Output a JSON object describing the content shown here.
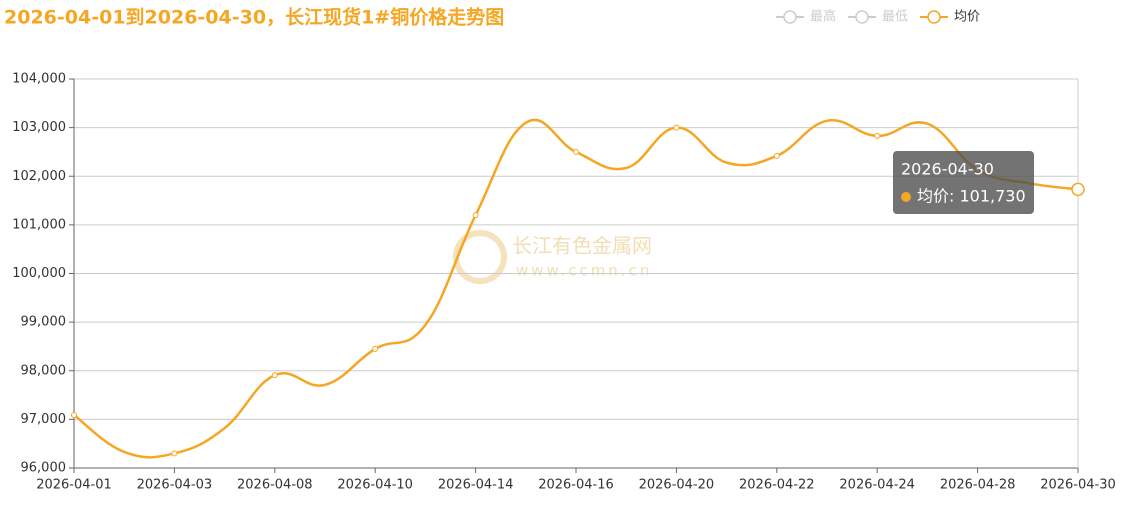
{
  "chart_data": {
    "type": "line",
    "title": "2026-04-01到2026-04-30，长江现货1#铜价格走势图",
    "legend": [
      {
        "name": "最高",
        "color": "#cccccc"
      },
      {
        "name": "最低",
        "color": "#cccccc"
      },
      {
        "name": "均价",
        "color": "#f5a623"
      }
    ],
    "categories": [
      "2026-04-01",
      null,
      "2026-04-03",
      null,
      "2026-04-08",
      null,
      "2026-04-10",
      null,
      "2026-04-14",
      null,
      "2026-04-16",
      null,
      "2026-04-20",
      null,
      "2026-04-22",
      null,
      "2026-04-24",
      null,
      "2026-04-28",
      null,
      "2026-04-30"
    ],
    "series": [
      {
        "name": "均价",
        "color": "#f5a623",
        "values": [
          97090,
          96330,
          96300,
          96820,
          97910,
          97710,
          98450,
          98940,
          101200,
          103100,
          102500,
          102170,
          103000,
          102280,
          102420,
          103140,
          102830,
          103080,
          102130,
          101860,
          101730
        ]
      }
    ],
    "ylim": [
      96000,
      104000
    ],
    "yticks": [
      {
        "value": 96000,
        "label": "96,000"
      },
      {
        "value": 97000,
        "label": "97,000"
      },
      {
        "value": 98000,
        "label": "98,000"
      },
      {
        "value": 99000,
        "label": "99,000"
      },
      {
        "value": 100000,
        "label": "100,000"
      },
      {
        "value": 101000,
        "label": "101,000"
      },
      {
        "value": 102000,
        "label": "102,000"
      },
      {
        "value": 103000,
        "label": "103,000"
      },
      {
        "value": 104000,
        "label": "104,000"
      }
    ],
    "grid": true,
    "tooltip": {
      "title": "2026-04-30",
      "text": "均价: 101,730"
    },
    "watermark": {
      "name": "长江有色金属网",
      "url": "www.ccmn.cn"
    }
  }
}
